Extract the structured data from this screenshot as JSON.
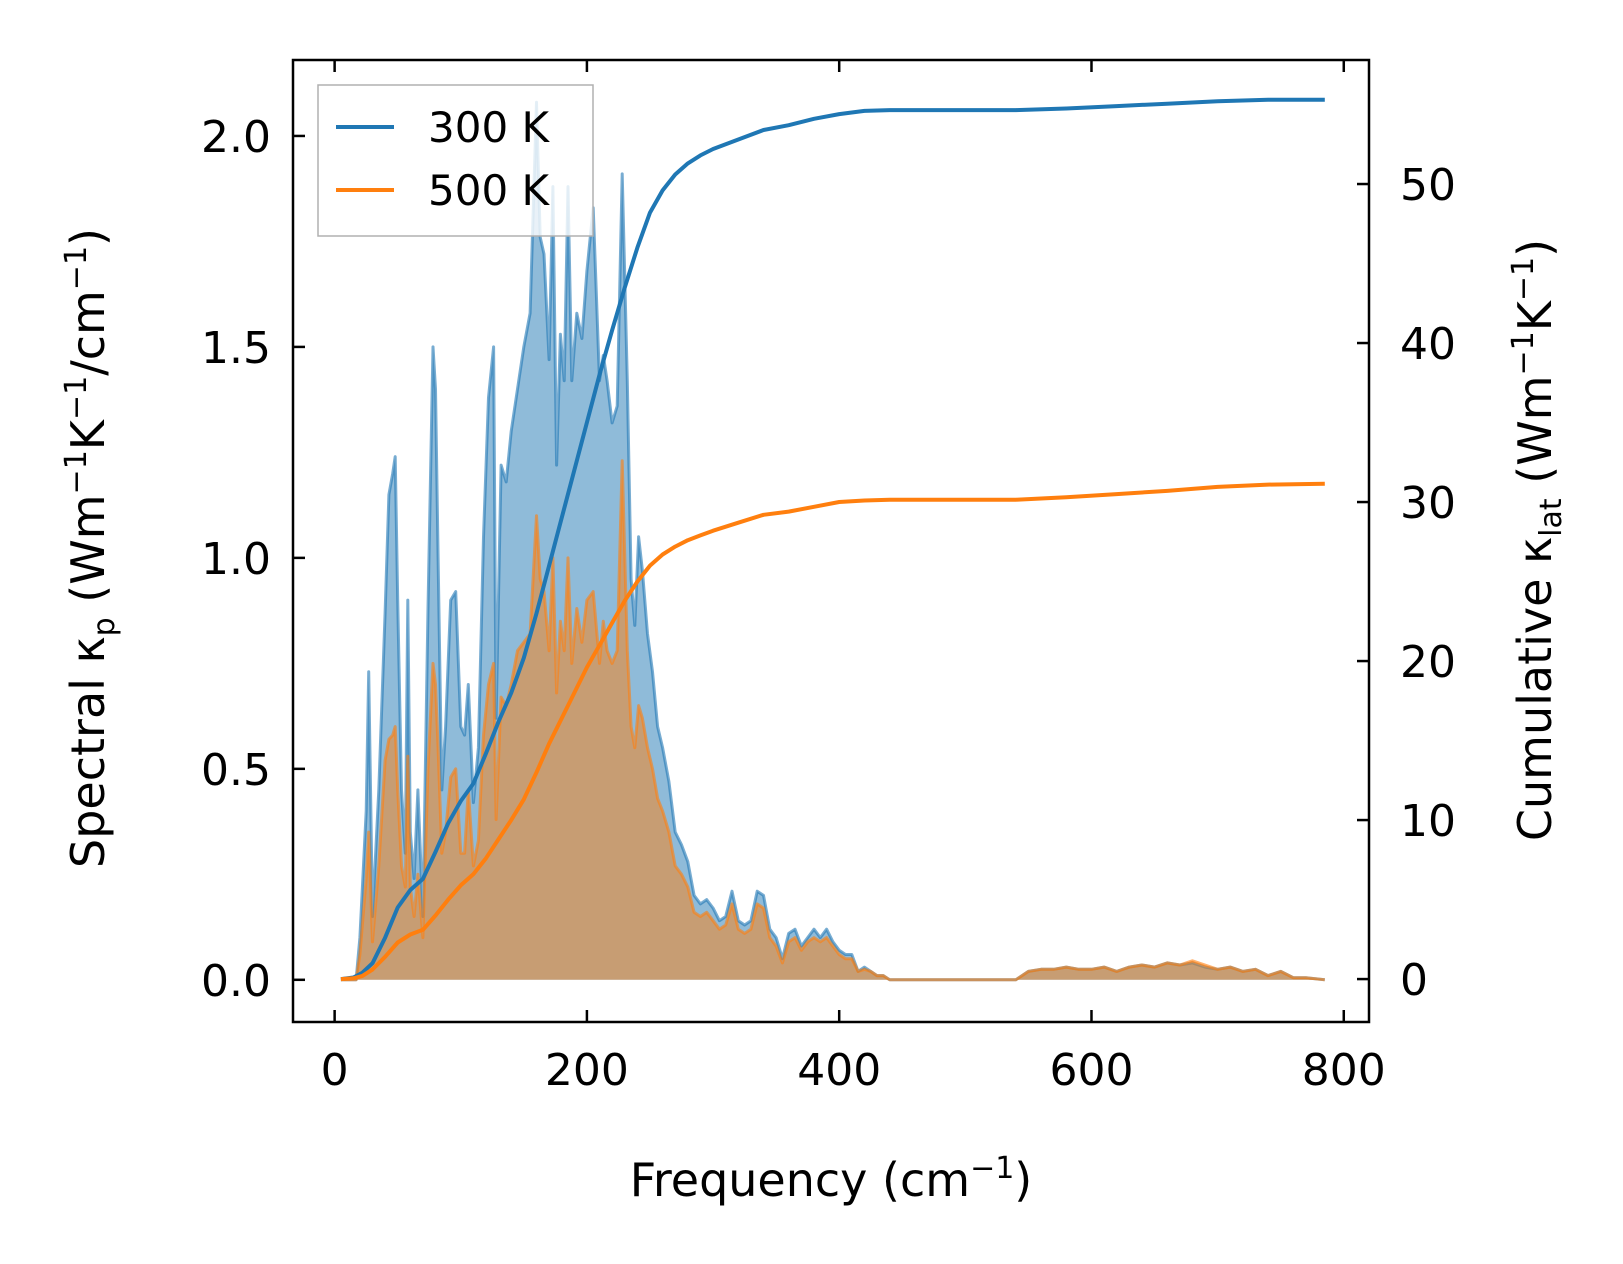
{
  "chart_data": {
    "type": "area",
    "xlabel": "Frequency (cm",
    "xlabel_sup": "−1",
    "xlabel_end": ")",
    "ylabel_left": "Spectral κ",
    "ylabel_left_sub": "p",
    "ylabel_left_units": " (Wm",
    "ylabel_left_sup1": "−1",
    "ylabel_left_mid": "K",
    "ylabel_left_sup2": "−1",
    "ylabel_left_end": "/cm",
    "ylabel_left_sup3": "−1",
    "ylabel_left_close": ")",
    "ylabel_right": "Cumulative κ",
    "ylabel_right_sub": "lat",
    "ylabel_right_units": " (Wm",
    "ylabel_right_sup1": "−1",
    "ylabel_right_mid": "K",
    "ylabel_right_sup2": "−1",
    "ylabel_right_close": ")",
    "xlim": [
      -33,
      820
    ],
    "ylim_left": [
      -0.1,
      2.18
    ],
    "ylim_right": [
      -2.7,
      57.8
    ],
    "xticks": [
      0,
      200,
      400,
      600,
      800
    ],
    "xtick_labels": [
      "0",
      "200",
      "400",
      "600",
      "800"
    ],
    "yticks_left": [
      0.0,
      0.5,
      1.0,
      1.5,
      2.0
    ],
    "ytick_left_labels": [
      "0.0",
      "0.5",
      "1.0",
      "1.5",
      "2.0"
    ],
    "yticks_right": [
      0,
      10,
      20,
      30,
      40,
      50
    ],
    "ytick_right_labels": [
      "0",
      "10",
      "20",
      "30",
      "40",
      "50"
    ],
    "legend_position": "top-left",
    "series": [
      {
        "name": "300 K",
        "color": "#1f77b4",
        "spectral": {
          "x": [
            5,
            12,
            17,
            20,
            25,
            27,
            30,
            35,
            40,
            43,
            46,
            48,
            50,
            53,
            56,
            58,
            60,
            63,
            66,
            70,
            74,
            78,
            80,
            82,
            85,
            88,
            92,
            96,
            100,
            103,
            106,
            110,
            114,
            118,
            122,
            126,
            128,
            132,
            136,
            140,
            145,
            150,
            155,
            160,
            163,
            166,
            170,
            173,
            176,
            179,
            182,
            185,
            188,
            192,
            196,
            200,
            205,
            210,
            213,
            216,
            220,
            224,
            228,
            232,
            235,
            238,
            241,
            244,
            248,
            252,
            256,
            260,
            265,
            270,
            275,
            280,
            285,
            290,
            295,
            300,
            305,
            310,
            315,
            320,
            325,
            330,
            335,
            340,
            345,
            350,
            355,
            360,
            365,
            370,
            375,
            380,
            385,
            390,
            395,
            400,
            405,
            410,
            415,
            420,
            425,
            430,
            435,
            440,
            445,
            450,
            460,
            480,
            500,
            520,
            540,
            550,
            560,
            570,
            580,
            590,
            600,
            610,
            620,
            630,
            640,
            650,
            660,
            670,
            680,
            690,
            700,
            710,
            720,
            730,
            740,
            750,
            760,
            770,
            785
          ],
          "y": [
            0.0,
            0.0,
            0.0,
            0.1,
            0.4,
            0.73,
            0.15,
            0.45,
            0.87,
            1.15,
            1.2,
            1.24,
            0.9,
            0.45,
            0.3,
            0.9,
            0.35,
            0.24,
            0.45,
            0.15,
            0.88,
            1.5,
            1.4,
            1.0,
            0.45,
            0.6,
            0.9,
            0.92,
            0.6,
            0.58,
            0.7,
            0.42,
            0.55,
            1.05,
            1.38,
            1.5,
            0.62,
            1.22,
            1.18,
            1.3,
            1.4,
            1.5,
            1.58,
            2.08,
            1.76,
            1.72,
            1.47,
            1.88,
            1.22,
            1.53,
            1.42,
            1.88,
            1.42,
            1.58,
            1.52,
            1.68,
            1.83,
            1.42,
            1.48,
            1.42,
            1.32,
            1.36,
            1.91,
            1.42,
            0.95,
            0.84,
            1.05,
            0.97,
            0.82,
            0.73,
            0.6,
            0.55,
            0.47,
            0.35,
            0.32,
            0.28,
            0.2,
            0.18,
            0.19,
            0.17,
            0.14,
            0.15,
            0.21,
            0.14,
            0.13,
            0.14,
            0.21,
            0.2,
            0.12,
            0.1,
            0.05,
            0.11,
            0.12,
            0.08,
            0.1,
            0.12,
            0.1,
            0.12,
            0.09,
            0.07,
            0.06,
            0.06,
            0.02,
            0.03,
            0.02,
            0.01,
            0.01,
            0.0,
            0.0,
            0.0,
            0.0,
            0.0,
            0.0,
            0.0,
            0.0,
            0.02,
            0.025,
            0.025,
            0.03,
            0.025,
            0.025,
            0.03,
            0.02,
            0.03,
            0.035,
            0.03,
            0.04,
            0.035,
            0.04,
            0.03,
            0.025,
            0.03,
            0.02,
            0.025,
            0.01,
            0.02,
            0.005,
            0.005,
            0.0
          ]
        },
        "cumulative": {
          "x": [
            5,
            15,
            22,
            30,
            40,
            50,
            60,
            70,
            80,
            90,
            100,
            110,
            120,
            130,
            140,
            150,
            160,
            170,
            180,
            190,
            200,
            210,
            220,
            230,
            240,
            250,
            260,
            270,
            280,
            290,
            300,
            320,
            340,
            360,
            380,
            400,
            420,
            440,
            460,
            500,
            540,
            580,
            620,
            660,
            700,
            740,
            785
          ],
          "y": [
            0.0,
            0.1,
            0.4,
            1.0,
            2.6,
            4.5,
            5.6,
            6.3,
            8.0,
            9.8,
            11.2,
            12.3,
            14.2,
            16.2,
            18.0,
            20.2,
            23.0,
            26.0,
            29.0,
            32.0,
            35.0,
            38.0,
            40.8,
            43.5,
            46.0,
            48.2,
            49.6,
            50.6,
            51.3,
            51.8,
            52.2,
            52.8,
            53.4,
            53.7,
            54.1,
            54.4,
            54.6,
            54.65,
            54.65,
            54.65,
            54.65,
            54.75,
            54.9,
            55.05,
            55.2,
            55.3,
            55.3
          ]
        }
      },
      {
        "name": "500 K",
        "color": "#ff7f0e",
        "spectral": {
          "x": [
            5,
            12,
            17,
            20,
            25,
            27,
            30,
            35,
            40,
            43,
            46,
            48,
            50,
            53,
            56,
            58,
            60,
            63,
            66,
            70,
            74,
            78,
            80,
            82,
            85,
            88,
            92,
            96,
            100,
            103,
            106,
            110,
            114,
            118,
            122,
            126,
            128,
            132,
            136,
            140,
            145,
            150,
            155,
            160,
            163,
            166,
            170,
            173,
            176,
            179,
            182,
            185,
            188,
            192,
            196,
            200,
            205,
            210,
            213,
            216,
            220,
            224,
            228,
            232,
            235,
            238,
            241,
            244,
            248,
            252,
            256,
            260,
            265,
            270,
            275,
            280,
            285,
            290,
            295,
            300,
            305,
            310,
            315,
            320,
            325,
            330,
            335,
            340,
            345,
            350,
            355,
            360,
            365,
            370,
            375,
            380,
            385,
            390,
            395,
            400,
            405,
            410,
            415,
            420,
            425,
            430,
            435,
            440,
            445,
            450,
            460,
            480,
            500,
            520,
            540,
            550,
            560,
            570,
            580,
            590,
            600,
            610,
            620,
            630,
            640,
            650,
            660,
            670,
            680,
            690,
            700,
            710,
            720,
            730,
            740,
            750,
            760,
            770,
            785
          ],
          "y": [
            0.0,
            0.0,
            0.0,
            0.06,
            0.24,
            0.35,
            0.09,
            0.27,
            0.52,
            0.57,
            0.58,
            0.6,
            0.45,
            0.27,
            0.22,
            0.53,
            0.22,
            0.15,
            0.25,
            0.1,
            0.5,
            0.75,
            0.7,
            0.55,
            0.3,
            0.35,
            0.48,
            0.5,
            0.3,
            0.3,
            0.45,
            0.27,
            0.33,
            0.58,
            0.7,
            0.75,
            0.38,
            0.67,
            0.65,
            0.7,
            0.78,
            0.8,
            0.82,
            1.1,
            0.95,
            0.92,
            0.78,
            1.0,
            0.68,
            0.85,
            0.78,
            1.0,
            0.75,
            0.88,
            0.8,
            0.9,
            0.92,
            0.75,
            0.85,
            0.78,
            0.75,
            0.78,
            1.23,
            0.78,
            0.6,
            0.55,
            0.65,
            0.62,
            0.55,
            0.5,
            0.43,
            0.4,
            0.35,
            0.27,
            0.25,
            0.22,
            0.16,
            0.15,
            0.16,
            0.14,
            0.12,
            0.13,
            0.18,
            0.12,
            0.11,
            0.12,
            0.18,
            0.17,
            0.1,
            0.08,
            0.04,
            0.09,
            0.1,
            0.07,
            0.09,
            0.1,
            0.09,
            0.1,
            0.08,
            0.06,
            0.05,
            0.05,
            0.02,
            0.025,
            0.02,
            0.01,
            0.01,
            0.0,
            0.0,
            0.0,
            0.0,
            0.0,
            0.0,
            0.0,
            0.0,
            0.02,
            0.025,
            0.025,
            0.03,
            0.025,
            0.025,
            0.03,
            0.02,
            0.03,
            0.035,
            0.03,
            0.04,
            0.035,
            0.045,
            0.035,
            0.025,
            0.03,
            0.02,
            0.025,
            0.01,
            0.02,
            0.005,
            0.005,
            0.0
          ]
        },
        "cumulative": {
          "x": [
            5,
            15,
            22,
            30,
            40,
            50,
            60,
            70,
            80,
            90,
            100,
            110,
            120,
            130,
            140,
            150,
            160,
            170,
            180,
            190,
            200,
            210,
            220,
            230,
            240,
            250,
            260,
            270,
            280,
            290,
            300,
            320,
            340,
            360,
            380,
            400,
            420,
            440,
            460,
            500,
            540,
            580,
            620,
            660,
            700,
            740,
            785
          ],
          "y": [
            0.0,
            0.05,
            0.2,
            0.6,
            1.4,
            2.3,
            2.8,
            3.1,
            4.0,
            5.0,
            5.9,
            6.6,
            7.6,
            8.8,
            10.0,
            11.3,
            13.0,
            14.8,
            16.4,
            18.0,
            19.6,
            21.0,
            22.4,
            23.8,
            25.0,
            26.0,
            26.7,
            27.2,
            27.6,
            27.9,
            28.2,
            28.7,
            29.2,
            29.4,
            29.7,
            30.0,
            30.1,
            30.15,
            30.15,
            30.15,
            30.15,
            30.3,
            30.5,
            30.7,
            30.95,
            31.1,
            31.15
          ]
        }
      }
    ]
  }
}
